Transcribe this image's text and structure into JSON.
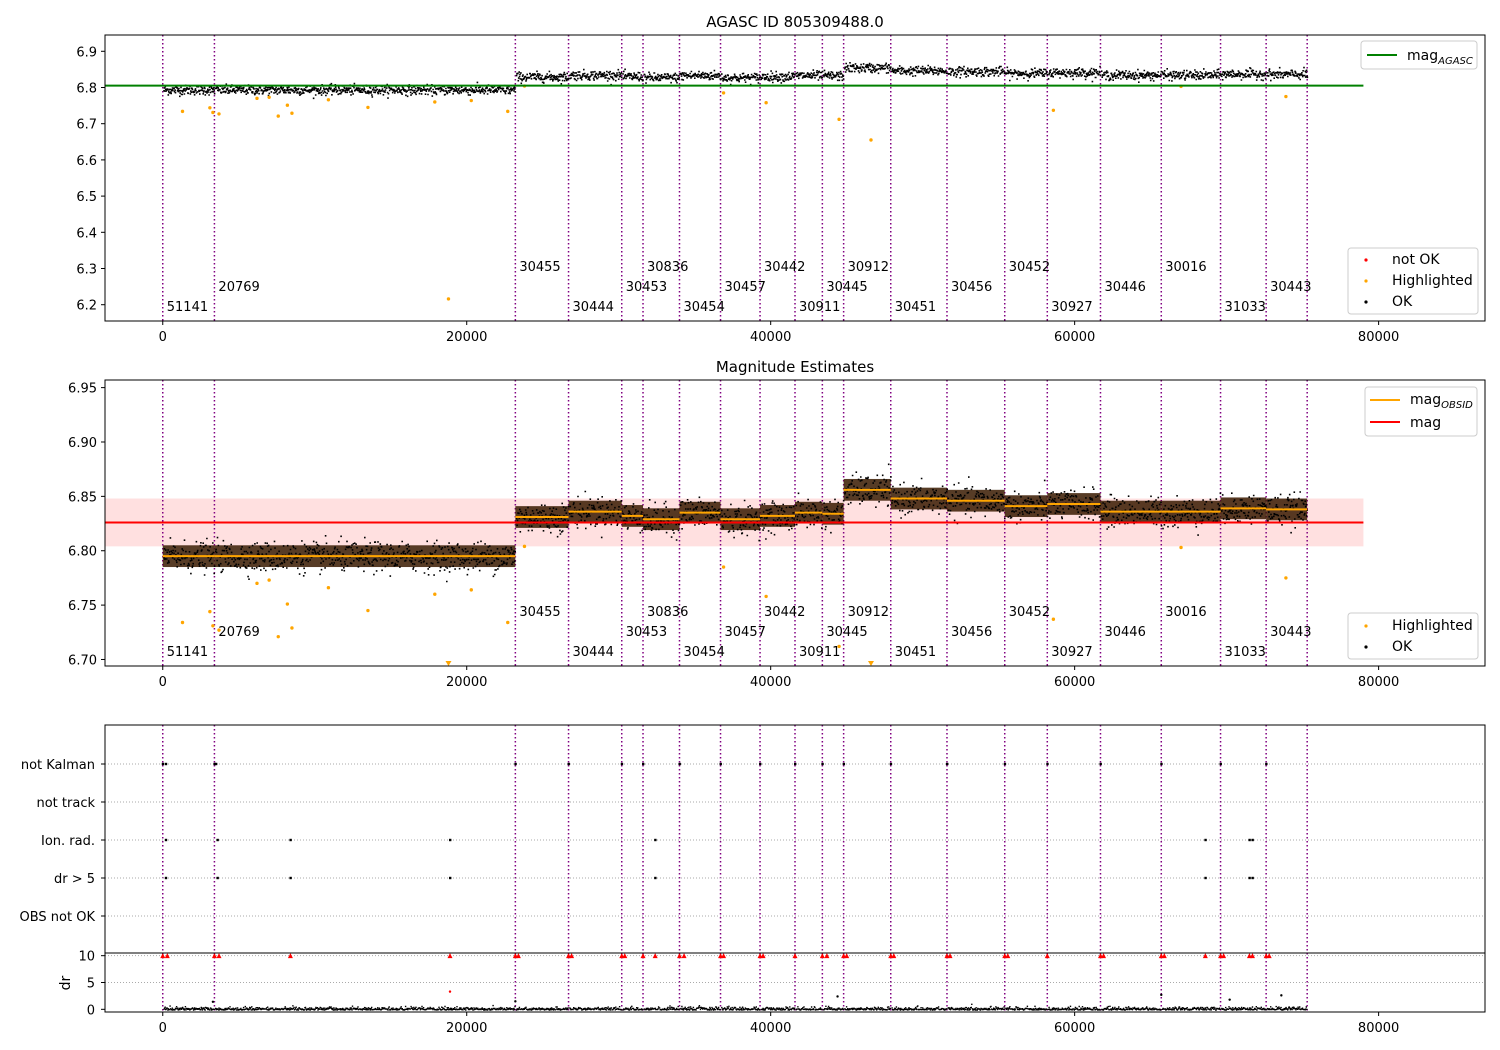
{
  "chart_data": [
    {
      "type": "scatter",
      "title": "AGASC ID 805309488.0",
      "xlim": [
        -3800,
        87000
      ],
      "ylim": [
        6.155,
        6.945
      ],
      "xticks": [
        0,
        20000,
        40000,
        60000,
        80000
      ],
      "yticks": [
        6.2,
        6.3,
        6.4,
        6.5,
        6.6,
        6.7,
        6.8,
        6.9
      ],
      "grid": false,
      "legend_top": {
        "placement": "top-right",
        "entries": [
          {
            "label": "mag",
            "sub": "AGASC",
            "color": "#008000"
          }
        ]
      },
      "legend_bottom": {
        "placement": "bottom-right",
        "entries": [
          {
            "label": "not OK",
            "color": "#ff0000"
          },
          {
            "label": "Highlighted",
            "color": "#ffa500"
          },
          {
            "label": "OK",
            "color": "#000000"
          }
        ]
      },
      "mag_agasc": 6.805,
      "mag_agasc_x": [
        -3800,
        79000
      ]
    },
    {
      "type": "scatter",
      "title": "Magnitude Estimates",
      "xlim": [
        -3800,
        87000
      ],
      "ylim": [
        6.694,
        6.957
      ],
      "xticks": [
        0,
        20000,
        40000,
        60000,
        80000
      ],
      "yticks": [
        6.7,
        6.75,
        6.8,
        6.85,
        6.9,
        6.95
      ],
      "ytick_labels": [
        "6.70",
        "6.75",
        "6.80",
        "6.85",
        "6.90",
        "6.95"
      ],
      "grid": false,
      "legend_top": {
        "placement": "top-right",
        "entries": [
          {
            "label": "mag",
            "sub": "OBSID",
            "color": "#ffa500"
          },
          {
            "label": "mag",
            "color": "#ff0000"
          }
        ]
      },
      "legend_bottom": {
        "placement": "bottom-right",
        "entries": [
          {
            "label": "Highlighted",
            "color": "#ffa500"
          },
          {
            "label": "OK",
            "color": "#000000"
          }
        ]
      },
      "mag": 6.826,
      "mag_band": [
        6.804,
        6.848
      ],
      "mag_x": [
        -3800,
        79000
      ]
    },
    {
      "type": "scatter",
      "title": "",
      "xlim": [
        -3800,
        87000
      ],
      "xticks": [
        0,
        20000,
        40000,
        60000,
        80000
      ],
      "flag_labels": [
        "not Kalman",
        "not track",
        "Ion. rad.",
        "dr > 5",
        "OBS not OK"
      ],
      "dr_ylabel": "dr",
      "dr_ylim": [
        -0.5,
        10.5
      ],
      "dr_yticks": [
        0,
        5,
        10
      ],
      "flag_points": {
        "not Kalman": [
          0,
          200,
          3400,
          3500,
          23200,
          26700,
          30200,
          31600,
          34000,
          36700,
          39300,
          41600,
          43400,
          44800,
          47900,
          51600,
          55400,
          58200,
          61700,
          65700,
          69600,
          72600
        ],
        "not track": [],
        "Ion. rad.": [
          200,
          3600,
          8400,
          18900,
          32400,
          68600,
          71500,
          71700
        ],
        "dr > 5": [
          200,
          3600,
          8400,
          18900,
          32400,
          68600,
          71500,
          71700
        ],
        "OBS not OK": []
      },
      "dr_red_x": [
        0,
        300,
        3400,
        3700,
        8400,
        18900,
        23200,
        23400,
        26700,
        26900,
        30200,
        30400,
        31600,
        32400,
        34000,
        34300,
        36700,
        36900,
        39300,
        39500,
        41600,
        43400,
        43700,
        44800,
        45000,
        47900,
        48100,
        51600,
        51800,
        55400,
        55600,
        58200,
        61700,
        61900,
        65700,
        65900,
        68600,
        69600,
        69800,
        71500,
        71700,
        72600,
        72800
      ],
      "dr_extra": [
        {
          "x": 18900,
          "y": 3.3
        },
        {
          "x": 3300,
          "y": 1.4
        },
        {
          "x": 23200,
          "y": 1.5
        },
        {
          "x": 44400,
          "y": 2.4
        },
        {
          "x": 65700,
          "y": 2.7
        },
        {
          "x": 73600,
          "y": 2.6
        },
        {
          "x": 70200,
          "y": 1.8
        }
      ]
    }
  ],
  "obsids": [
    {
      "id": "51141",
      "start": 0,
      "end": 3400,
      "mag": 6.795,
      "mag2": 6.795,
      "row": 0
    },
    {
      "id": "20769",
      "start": 3400,
      "end": 23200,
      "mag": 6.795,
      "mag2": 6.795,
      "row": 1
    },
    {
      "id": "30455",
      "start": 23200,
      "end": 26700,
      "mag": 6.831,
      "mag2": 6.831,
      "row": 2
    },
    {
      "id": "30444",
      "start": 26700,
      "end": 30200,
      "mag": 6.836,
      "mag2": 6.836,
      "row": 0
    },
    {
      "id": "30453",
      "start": 30200,
      "end": 31600,
      "mag": 6.832,
      "mag2": 6.832,
      "row": 1
    },
    {
      "id": "30836",
      "start": 31600,
      "end": 34000,
      "mag": 6.829,
      "mag2": 6.829,
      "row": 2
    },
    {
      "id": "30454",
      "start": 34000,
      "end": 36700,
      "mag": 6.835,
      "mag2": 6.835,
      "row": 0
    },
    {
      "id": "30457",
      "start": 36700,
      "end": 39300,
      "mag": 6.829,
      "mag2": 6.829,
      "row": 1
    },
    {
      "id": "30442",
      "start": 39300,
      "end": 41600,
      "mag": 6.832,
      "mag2": 6.832,
      "row": 2
    },
    {
      "id": "30911",
      "start": 41600,
      "end": 43400,
      "mag": 6.835,
      "mag2": 6.835,
      "row": 0
    },
    {
      "id": "30445",
      "start": 43400,
      "end": 44800,
      "mag": 6.834,
      "mag2": 6.834,
      "row": 1
    },
    {
      "id": "30912",
      "start": 44800,
      "end": 47900,
      "mag": 6.856,
      "mag2": 6.856,
      "row": 2
    },
    {
      "id": "30451",
      "start": 47900,
      "end": 51600,
      "mag": 6.848,
      "mag2": 6.848,
      "row": 0
    },
    {
      "id": "30456",
      "start": 51600,
      "end": 55400,
      "mag": 6.846,
      "mag2": 6.846,
      "row": 1
    },
    {
      "id": "30452",
      "start": 55400,
      "end": 58200,
      "mag": 6.841,
      "mag2": 6.841,
      "row": 2
    },
    {
      "id": "30927",
      "start": 58200,
      "end": 61700,
      "mag": 6.843,
      "mag2": 6.843,
      "row": 0
    },
    {
      "id": "30446",
      "start": 61700,
      "end": 65700,
      "mag": 6.836,
      "mag2": 6.836,
      "row": 1
    },
    {
      "id": "30016",
      "start": 65700,
      "end": 69600,
      "mag": 6.836,
      "mag2": 6.836,
      "row": 2
    },
    {
      "id": "31033",
      "start": 69600,
      "end": 72600,
      "mag": 6.839,
      "mag2": 6.839,
      "row": 0
    },
    {
      "id": "30443",
      "start": 72600,
      "end": 75300,
      "mag": 6.838,
      "mag2": 6.838,
      "row": 1
    }
  ],
  "highlighted": [
    {
      "x": 1300,
      "y": 6.734
    },
    {
      "x": 3100,
      "y": 6.744
    },
    {
      "x": 3300,
      "y": 6.731
    },
    {
      "x": 3700,
      "y": 6.727
    },
    {
      "x": 6200,
      "y": 6.77
    },
    {
      "x": 7000,
      "y": 6.773
    },
    {
      "x": 7600,
      "y": 6.721
    },
    {
      "x": 8200,
      "y": 6.751
    },
    {
      "x": 8500,
      "y": 6.729
    },
    {
      "x": 10900,
      "y": 6.766
    },
    {
      "x": 13500,
      "y": 6.745
    },
    {
      "x": 17900,
      "y": 6.76
    },
    {
      "x": 18800,
      "y": 6.216
    },
    {
      "x": 20300,
      "y": 6.764
    },
    {
      "x": 22700,
      "y": 6.734
    },
    {
      "x": 23800,
      "y": 6.804
    },
    {
      "x": 36900,
      "y": 6.785
    },
    {
      "x": 39700,
      "y": 6.758
    },
    {
      "x": 44500,
      "y": 6.712
    },
    {
      "x": 46600,
      "y": 6.655
    },
    {
      "x": 58600,
      "y": 6.737
    },
    {
      "x": 67000,
      "y": 6.803
    },
    {
      "x": 73900,
      "y": 6.775
    }
  ]
}
